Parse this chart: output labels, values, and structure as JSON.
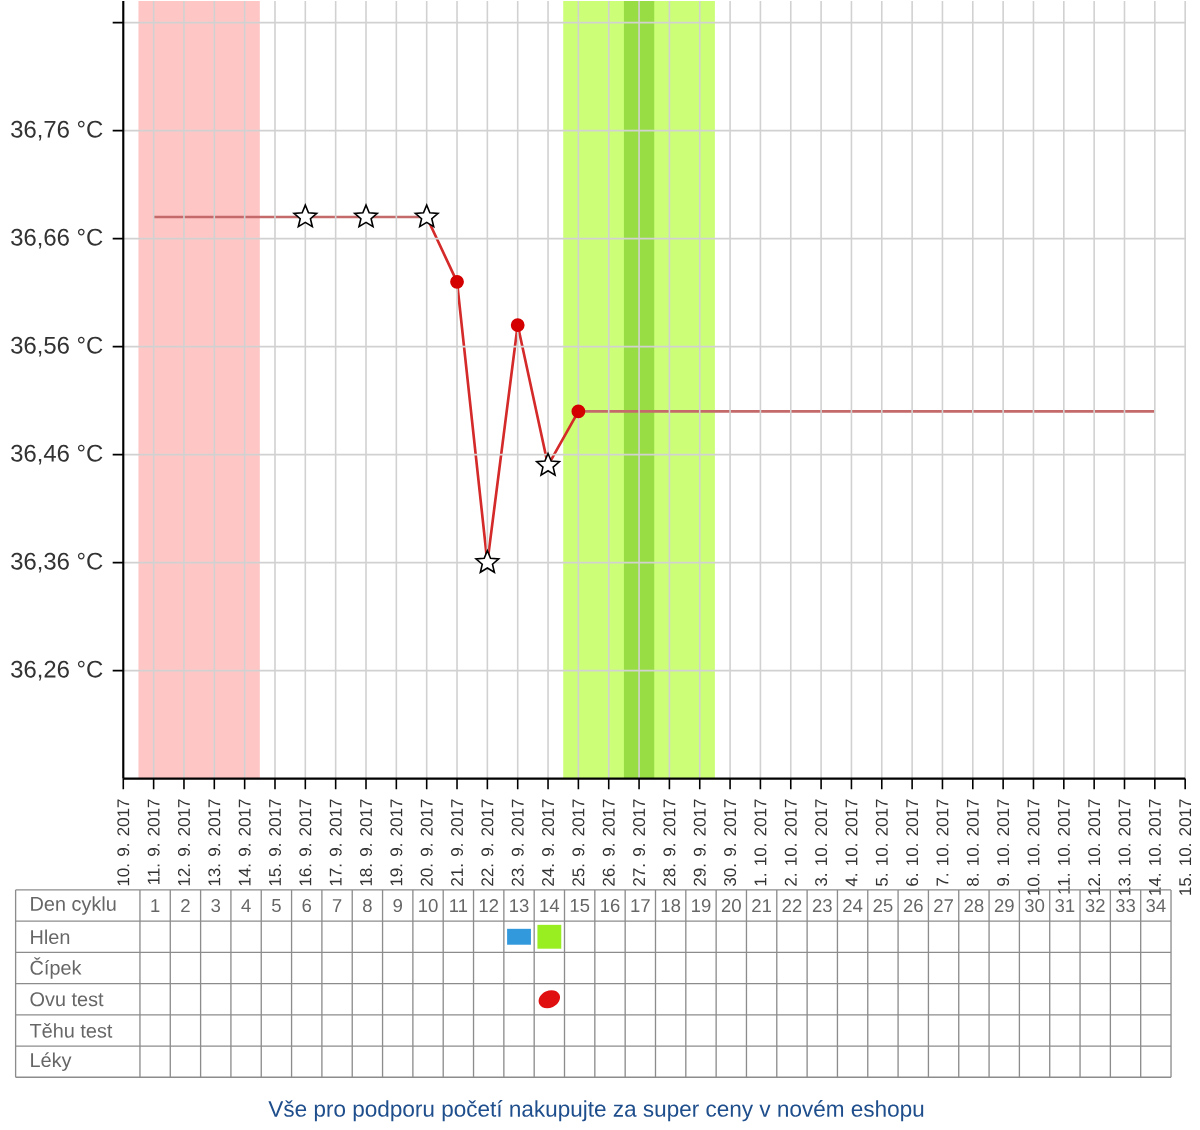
{
  "chart_data": [
    {
      "type": "line",
      "xlim": [
        "2017-09-10",
        "2017-10-15"
      ],
      "ylim": [
        36.16,
        36.88
      ],
      "grid": true,
      "xticks": [
        {
          "value": "2017-09-10",
          "label": "10. 9. 2017"
        },
        {
          "value": "2017-09-11",
          "label": "11. 9. 2017"
        },
        {
          "value": "2017-09-12",
          "label": "12. 9. 2017"
        },
        {
          "value": "2017-09-13",
          "label": "13. 9. 2017"
        },
        {
          "value": "2017-09-14",
          "label": "14. 9. 2017"
        },
        {
          "value": "2017-09-15",
          "label": "15. 9. 2017"
        },
        {
          "value": "2017-09-16",
          "label": "16. 9. 2017"
        },
        {
          "value": "2017-09-17",
          "label": "17. 9. 2017"
        },
        {
          "value": "2017-09-18",
          "label": "18. 9. 2017"
        },
        {
          "value": "2017-09-19",
          "label": "19. 9. 2017"
        },
        {
          "value": "2017-09-20",
          "label": "20. 9. 2017"
        },
        {
          "value": "2017-09-21",
          "label": "21. 9. 2017"
        },
        {
          "value": "2017-09-22",
          "label": "22. 9. 2017"
        },
        {
          "value": "2017-09-23",
          "label": "23. 9. 2017"
        },
        {
          "value": "2017-09-24",
          "label": "24. 9. 2017"
        },
        {
          "value": "2017-09-25",
          "label": "25. 9. 2017"
        },
        {
          "value": "2017-09-26",
          "label": "26. 9. 2017"
        },
        {
          "value": "2017-09-27",
          "label": "27. 9. 2017"
        },
        {
          "value": "2017-09-28",
          "label": "28. 9. 2017"
        },
        {
          "value": "2017-09-29",
          "label": "29. 9. 2017"
        },
        {
          "value": "2017-09-30",
          "label": "30. 9. 2017"
        },
        {
          "value": "2017-10-01",
          "label": "1. 10. 2017"
        },
        {
          "value": "2017-10-02",
          "label": "2. 10. 2017"
        },
        {
          "value": "2017-10-03",
          "label": "3. 10. 2017"
        },
        {
          "value": "2017-10-04",
          "label": "4. 10. 2017"
        },
        {
          "value": "2017-10-05",
          "label": "5. 10. 2017"
        },
        {
          "value": "2017-10-06",
          "label": "6. 10. 2017"
        },
        {
          "value": "2017-10-07",
          "label": "7. 10. 2017"
        },
        {
          "value": "2017-10-08",
          "label": "8. 10. 2017"
        },
        {
          "value": "2017-10-09",
          "label": "9. 10. 2017"
        },
        {
          "value": "2017-10-10",
          "label": "10. 10. 2017"
        },
        {
          "value": "2017-10-11",
          "label": "11. 10. 2017"
        },
        {
          "value": "2017-10-12",
          "label": "12. 10. 2017"
        },
        {
          "value": "2017-10-13",
          "label": "13. 10. 2017"
        },
        {
          "value": "2017-10-14",
          "label": "14. 10. 2017"
        },
        {
          "value": "2017-10-15",
          "label": "15. 10. 2017"
        }
      ],
      "yticks": [
        {
          "value": 36.26,
          "label": "36,26 °C"
        },
        {
          "value": 36.36,
          "label": "36,36 °C"
        },
        {
          "value": 36.46,
          "label": "36,46 °C"
        },
        {
          "value": 36.56,
          "label": "36,56 °C"
        },
        {
          "value": 36.66,
          "label": "36,66 °C"
        },
        {
          "value": 36.76,
          "label": "36,76 °C"
        },
        {
          "value": 36.86,
          "label": null
        }
      ],
      "bands": [
        {
          "axis": "x",
          "from": "2017-09-10T12:00",
          "to": "2017-09-14T12:00",
          "color": "#ffc6c6"
        },
        {
          "axis": "x",
          "from": "2017-09-24T12:00",
          "to": "2017-09-29T12:00",
          "color": "#ccff77"
        },
        {
          "axis": "x",
          "from": "2017-09-26T12:00",
          "to": "2017-09-27T12:00",
          "color": "#99dd44"
        }
      ],
      "series": [
        {
          "type": "line",
          "color": "#c46a6a",
          "x": [
            "2017-09-11",
            "2017-09-12",
            "2017-09-13",
            "2017-09-14",
            "2017-09-15",
            "2017-09-16",
            "2017-09-17",
            "2017-09-18",
            "2017-09-19",
            "2017-09-20"
          ],
          "values": [
            36.68,
            36.68,
            36.68,
            36.68,
            36.68,
            36.68,
            36.68,
            36.68,
            36.68,
            36.68
          ]
        },
        {
          "type": "line",
          "color": "#d42a2a",
          "x": [
            "2017-09-20",
            "2017-09-21",
            "2017-09-22",
            "2017-09-23",
            "2017-09-24",
            "2017-09-25"
          ],
          "values": [
            36.68,
            36.62,
            36.36,
            36.58,
            36.45,
            36.5
          ]
        },
        {
          "type": "line",
          "color": "#c46a6a",
          "x": [
            "2017-09-25",
            "2017-09-26",
            "2017-09-27",
            "2017-09-28",
            "2017-09-29",
            "2017-09-30",
            "2017-10-01",
            "2017-10-02",
            "2017-10-03",
            "2017-10-04",
            "2017-10-05",
            "2017-10-06",
            "2017-10-07",
            "2017-10-08",
            "2017-10-09",
            "2017-10-10",
            "2017-10-11",
            "2017-10-12",
            "2017-10-13",
            "2017-10-14"
          ],
          "values": [
            36.5,
            36.5,
            36.5,
            36.5,
            36.5,
            36.5,
            36.5,
            36.5,
            36.5,
            36.5,
            36.5,
            36.5,
            36.5,
            36.5,
            36.5,
            36.5,
            36.5,
            36.5,
            36.5,
            36.5
          ]
        },
        {
          "type": "scatter",
          "marker": "circle",
          "color": "#d40000",
          "x": [
            "2017-09-21",
            "2017-09-23",
            "2017-09-25"
          ],
          "values": [
            36.62,
            36.58,
            36.5
          ]
        },
        {
          "type": "scatter",
          "marker": "star",
          "color": "#ffffff",
          "x": [
            "2017-09-16",
            "2017-09-18",
            "2017-09-20",
            "2017-09-22",
            "2017-09-24"
          ],
          "values": [
            36.68,
            36.68,
            36.68,
            36.36,
            36.45
          ]
        }
      ],
      "annotations": [
        "Vše pro podporu početí nakupujte za super ceny v novém eshopu"
      ]
    },
    {
      "type": "heatmap",
      "xlabel": "Den cyklu",
      "categories": [
        "1",
        "2",
        "3",
        "4",
        "5",
        "6",
        "7",
        "8",
        "9",
        "10",
        "11",
        "12",
        "13",
        "14",
        "15",
        "16",
        "17",
        "18",
        "19",
        "20",
        "21",
        "22",
        "23",
        "24",
        "25",
        "26",
        "27",
        "28",
        "29",
        "30",
        "31",
        "32",
        "33",
        "34"
      ],
      "y_categories": [
        "Hlen",
        "Čípek",
        "Ovu test",
        "Těhu test",
        "Léky"
      ],
      "cells": [
        [
          null,
          null,
          null,
          null,
          null,
          null,
          null,
          null,
          null,
          null,
          null,
          null,
          null,
          null,
          null,
          null,
          null,
          null,
          null,
          null,
          null,
          null,
          null,
          null,
          null,
          null,
          null,
          null,
          null,
          null,
          null,
          null,
          null,
          null
        ],
        [
          null,
          null,
          null,
          null,
          null,
          null,
          null,
          null,
          null,
          null,
          null,
          null,
          null,
          null,
          null,
          null,
          null,
          null,
          null,
          null,
          null,
          null,
          null,
          null,
          null,
          null,
          null,
          null,
          null,
          null,
          null,
          null,
          null,
          null
        ],
        [
          null,
          null,
          null,
          null,
          null,
          null,
          null,
          null,
          null,
          null,
          null,
          null,
          null,
          null,
          null,
          null,
          null,
          null,
          null,
          null,
          null,
          null,
          null,
          null,
          null,
          null,
          null,
          null,
          null,
          null,
          null,
          null,
          null,
          null
        ],
        [
          null,
          null,
          null,
          null,
          null,
          null,
          null,
          null,
          null,
          null,
          null,
          null,
          null,
          null,
          null,
          null,
          null,
          null,
          null,
          null,
          null,
          null,
          null,
          null,
          null,
          null,
          null,
          null,
          null,
          null,
          null,
          null,
          null,
          null
        ],
        [
          null,
          null,
          null,
          null,
          null,
          null,
          null,
          null,
          null,
          null,
          null,
          null,
          null,
          null,
          null,
          null,
          null,
          null,
          null,
          null,
          null,
          null,
          null,
          null,
          null,
          null,
          null,
          null,
          null,
          null,
          null,
          null,
          null,
          null
        ]
      ]
    }
  ]
}
